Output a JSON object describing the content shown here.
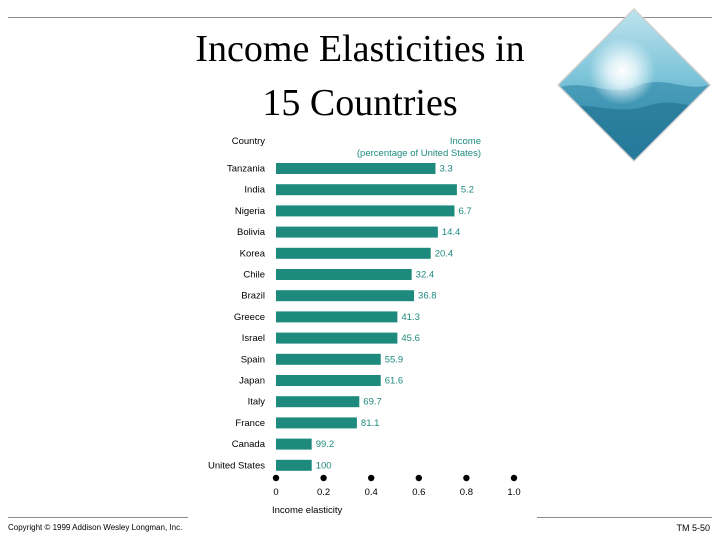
{
  "slide": {
    "title_line1": "Income Elasticities in",
    "title_line2": "15 Countries",
    "copyright": "Copyright © 1999 Addison Wesley Longman, Inc.",
    "slide_number": "TM 5-50"
  },
  "colors": {
    "bar": "#1e8a7e",
    "value_label": "#1e8a7e",
    "accent_text": "#1e8a7e"
  },
  "chart_data": {
    "type": "bar",
    "orientation": "horizontal",
    "title": "",
    "category_header": "Country",
    "value_header_line1": "Income",
    "value_header_line2": "(percentage of United States)",
    "xlabel": "Income elasticity",
    "xlim": [
      0,
      1.0
    ],
    "xticks": [
      "0",
      "0.2",
      "0.4",
      "0.6",
      "0.8",
      "1.0"
    ],
    "categories": [
      "Tanzania",
      "India",
      "Nigeria",
      "Bolivia",
      "Korea",
      "Chile",
      "Brazil",
      "Greece",
      "Israel",
      "Spain",
      "Japan",
      "Italy",
      "France",
      "Canada",
      "United States"
    ],
    "elasticity": [
      0.67,
      0.76,
      0.75,
      0.68,
      0.65,
      0.57,
      0.58,
      0.51,
      0.51,
      0.44,
      0.44,
      0.35,
      0.34,
      0.15,
      0.15
    ],
    "income_labels": [
      "3.3",
      "5.2",
      "6.7",
      "14.4",
      "20.4",
      "32.4",
      "36.8",
      "41.3",
      "45.6",
      "55.9",
      "61.6",
      "69.7",
      "81.1",
      "99.2",
      "100"
    ]
  }
}
